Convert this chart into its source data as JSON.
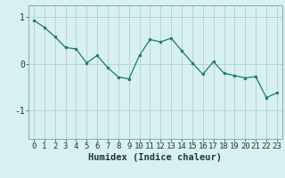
{
  "x": [
    0,
    1,
    2,
    3,
    4,
    5,
    6,
    7,
    8,
    9,
    10,
    11,
    12,
    13,
    14,
    15,
    16,
    17,
    18,
    19,
    20,
    21,
    22,
    23
  ],
  "y": [
    0.93,
    0.78,
    0.58,
    0.35,
    0.32,
    0.02,
    0.18,
    -0.08,
    -0.28,
    -0.32,
    0.18,
    0.52,
    0.47,
    0.55,
    0.28,
    0.02,
    -0.22,
    0.05,
    -0.2,
    -0.25,
    -0.3,
    -0.27,
    -0.72,
    -0.62
  ],
  "line_color": "#1a7a6e",
  "marker_color": "#1a7a6e",
  "bg_color": "#d8f0f0",
  "grid_color": "#b0d0d0",
  "xlabel": "Humidex (Indice chaleur)",
  "yticks": [
    -1,
    0,
    1
  ],
  "xticks": [
    0,
    1,
    2,
    3,
    4,
    5,
    6,
    7,
    8,
    9,
    10,
    11,
    12,
    13,
    14,
    15,
    16,
    17,
    18,
    19,
    20,
    21,
    22,
    23
  ],
  "ylim": [
    -1.6,
    1.25
  ],
  "xlim": [
    -0.5,
    23.5
  ],
  "xlabel_fontsize": 7.5,
  "tick_fontsize": 6.5
}
